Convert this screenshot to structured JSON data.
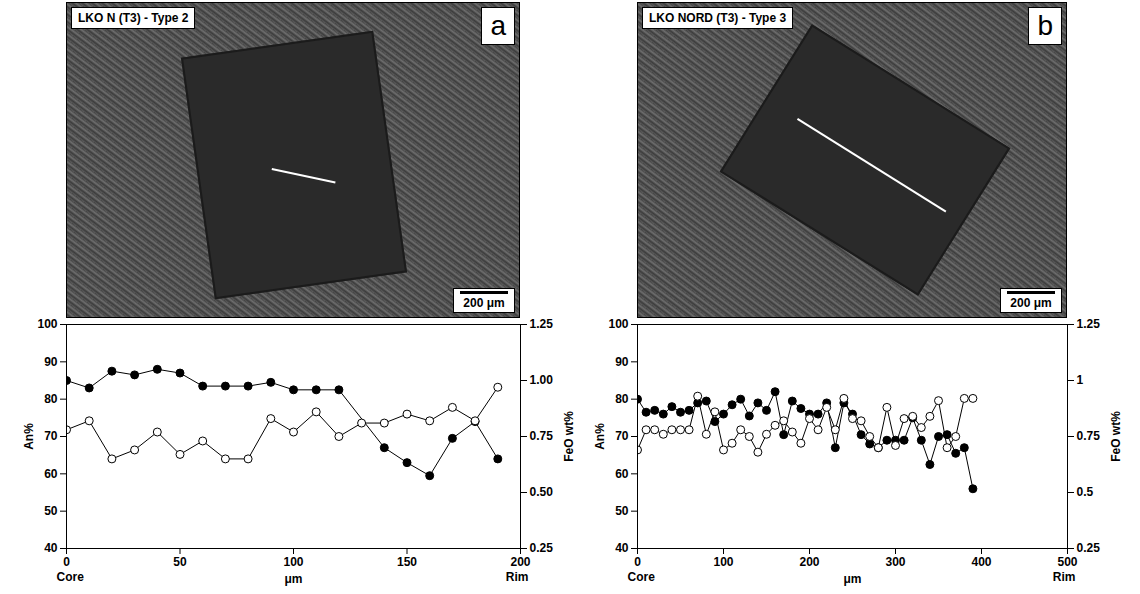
{
  "chart_data": [
    {
      "type": "line",
      "panel": "a",
      "title": "LKO N (T3) - Type 2",
      "scale_bar_label": "200 μm",
      "x_label": "μm",
      "x_end_labels": [
        "Core",
        "Rim"
      ],
      "y_label": "An%",
      "y2_label": "FeO wt%",
      "xlim": [
        0,
        200
      ],
      "xticks": [
        0,
        50,
        100,
        150,
        200
      ],
      "ylim": [
        40,
        100
      ],
      "yticks": [
        40,
        50,
        60,
        70,
        80,
        90,
        100
      ],
      "y2lim": [
        0.25,
        1.25
      ],
      "y2ticks": [
        0.25,
        {
          "value": 0.5,
          "label": "0.50"
        },
        0.75,
        {
          "value": 1,
          "label": "1.00"
        },
        1.25
      ],
      "grid": false,
      "series": [
        {
          "name": "An%",
          "color": "#000000",
          "marker": "filled circle",
          "line_style": "solid",
          "x": [
            0,
            10,
            20,
            30,
            40,
            50,
            60,
            70,
            80,
            90,
            100,
            110,
            120,
            140,
            150,
            160,
            170,
            180,
            190
          ],
          "values": [
            85,
            83,
            87.5,
            86.5,
            88,
            87,
            83.5,
            83.5,
            83.5,
            84.5,
            82.5,
            82.5,
            82.5,
            67,
            63,
            59.5,
            69.5,
            74,
            64
          ]
        },
        {
          "name": "FeO wt%",
          "axis": "y2",
          "color": "#000000",
          "marker": "open circle",
          "line_style": "solid",
          "x": [
            0,
            10,
            20,
            30,
            40,
            50,
            60,
            70,
            80,
            90,
            100,
            110,
            120,
            130,
            140,
            150,
            160,
            170,
            180,
            190
          ],
          "values": [
            0.78,
            0.82,
            0.65,
            0.69,
            0.77,
            0.67,
            0.73,
            0.65,
            0.65,
            0.83,
            0.77,
            0.86,
            0.75,
            0.81,
            0.81,
            0.85,
            0.82,
            0.88,
            0.82,
            0.97
          ]
        }
      ]
    },
    {
      "type": "line",
      "panel": "b",
      "title": "LKO NORD (T3) - Type 3",
      "scale_bar_label": "200 μm",
      "x_label": "μm",
      "x_end_labels": [
        "Core",
        "Rim"
      ],
      "y_label": "An%",
      "y2_label": "FeO wt%",
      "xlim": [
        0,
        500
      ],
      "xticks": [
        0,
        100,
        200,
        300,
        400,
        500
      ],
      "ylim": [
        40,
        100
      ],
      "yticks": [
        40,
        50,
        60,
        70,
        80,
        90,
        100
      ],
      "y2lim": [
        0.25,
        1.25
      ],
      "y2ticks": [
        0.25,
        0.5,
        0.75,
        1,
        1.25
      ],
      "grid": false,
      "series": [
        {
          "name": "An%",
          "color": "#000000",
          "marker": "filled circle",
          "line_style": "solid",
          "x": [
            0,
            10,
            20,
            30,
            40,
            50,
            60,
            70,
            80,
            90,
            100,
            110,
            120,
            130,
            140,
            150,
            160,
            170,
            180,
            190,
            200,
            210,
            220,
            230,
            240,
            250,
            260,
            270,
            280,
            290,
            300,
            310,
            320,
            330,
            340,
            350,
            360,
            370,
            380,
            390
          ],
          "values": [
            80,
            76.5,
            77,
            76,
            78,
            76.5,
            77,
            79,
            79.5,
            74,
            76,
            78.5,
            80,
            75.5,
            79,
            77,
            82,
            70.5,
            79.5,
            77.5,
            76,
            76,
            79,
            67,
            79,
            76,
            70.5,
            68,
            67,
            69,
            69,
            69,
            75,
            69,
            62.5,
            70,
            70.5,
            65.5,
            67,
            56
          ]
        },
        {
          "name": "FeO wt%",
          "axis": "y2",
          "color": "#000000",
          "marker": "open circle",
          "line_style": "solid",
          "x": [
            0,
            10,
            20,
            30,
            40,
            50,
            60,
            70,
            80,
            90,
            100,
            110,
            120,
            130,
            140,
            150,
            160,
            170,
            180,
            190,
            200,
            210,
            220,
            230,
            240,
            250,
            260,
            270,
            280,
            290,
            300,
            310,
            320,
            330,
            340,
            350,
            360,
            370,
            380,
            390
          ],
          "values": [
            0.69,
            0.78,
            0.78,
            0.76,
            0.78,
            0.78,
            0.78,
            0.93,
            0.76,
            0.86,
            0.69,
            0.72,
            0.78,
            0.75,
            0.68,
            0.76,
            0.8,
            0.82,
            0.77,
            0.72,
            0.83,
            0.78,
            0.88,
            0.78,
            0.92,
            0.83,
            0.82,
            0.75,
            0.7,
            0.88,
            0.71,
            0.83,
            0.84,
            0.79,
            0.84,
            0.91,
            0.7,
            0.75,
            0.92,
            0.92
          ]
        }
      ]
    }
  ]
}
